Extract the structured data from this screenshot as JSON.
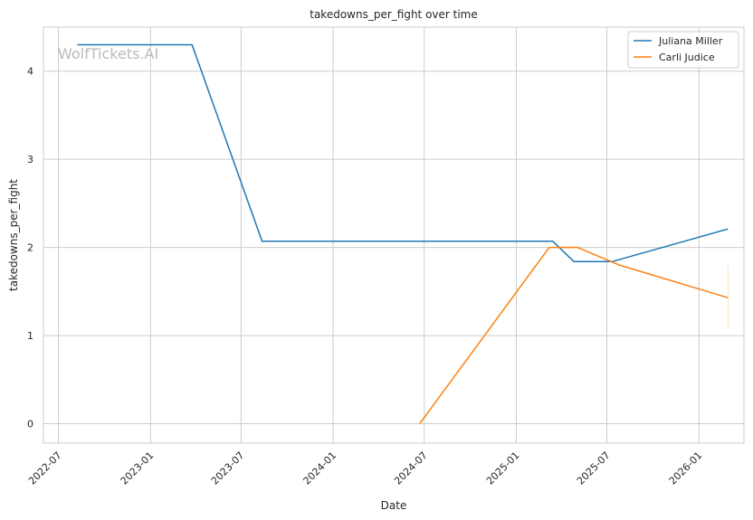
{
  "chart_data": {
    "type": "line",
    "title": "takedowns_per_fight over time",
    "xlabel": "Date",
    "ylabel": "takedowns_per_fight",
    "watermark": "WolfTickets.AI",
    "x_ticks": [
      "2022-07",
      "2023-01",
      "2023-07",
      "2024-01",
      "2024-07",
      "2025-01",
      "2025-07",
      "2026-01"
    ],
    "y_ticks": [
      0,
      1,
      2,
      3,
      4
    ],
    "xlim": [
      "2022-06-01",
      "2026-04-01"
    ],
    "ylim": [
      -0.22,
      4.5
    ],
    "grid": true,
    "legend_position": "top-right",
    "series": [
      {
        "name": "Juliana Miller",
        "color": "#1f77b4",
        "points": [
          [
            "2022-08-08",
            4.3
          ],
          [
            "2023-03-25",
            4.3
          ],
          [
            "2023-08-12",
            2.07
          ],
          [
            "2025-03-15",
            2.07
          ],
          [
            "2025-04-26",
            1.84
          ],
          [
            "2025-07-12",
            1.84
          ],
          [
            "2026-02-28",
            2.21
          ]
        ]
      },
      {
        "name": "Carli Judice",
        "color": "#ff7f0e",
        "points": [
          [
            "2024-06-22",
            0.0
          ],
          [
            "2025-03-08",
            2.0
          ],
          [
            "2025-05-03",
            2.0
          ],
          [
            "2025-07-26",
            1.8
          ],
          [
            "2026-02-28",
            1.43
          ]
        ],
        "error_bar": {
          "x": "2026-02-28",
          "low": 1.06,
          "high": 1.8
        }
      }
    ]
  }
}
